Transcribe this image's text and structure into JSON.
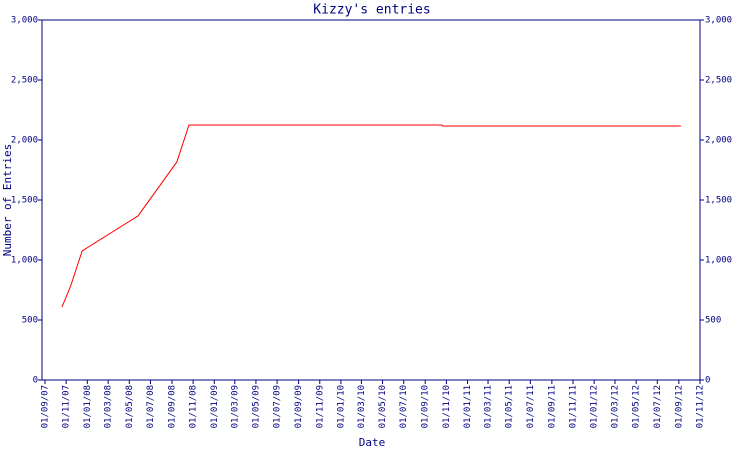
{
  "chart_data": {
    "type": "line",
    "title": "Kizzy's entries",
    "x_label": "Date",
    "y_label": "Number of Entries",
    "x": [
      "2007-10-20",
      "2007-11-15",
      "2007-12-17",
      "2008-05-26",
      "2008-09-15",
      "2008-10-20",
      "2010-10-19",
      "2010-10-21",
      "2012-09-07"
    ],
    "series": [
      {
        "color": "#ff0000",
        "values": [
          608,
          792,
          1075,
          1367,
          1817,
          2125,
          2125,
          2117,
          2117
        ]
      }
    ],
    "xlim": [
      "2007-09-01",
      "2012-11-01"
    ],
    "xticks": [
      {
        "value": "2007-09-01",
        "label": "01/09/07"
      },
      {
        "value": "2007-11-01",
        "label": "01/11/07"
      },
      {
        "value": "2008-01-01",
        "label": "01/01/08"
      },
      {
        "value": "2008-03-01",
        "label": "01/03/08"
      },
      {
        "value": "2008-05-01",
        "label": "01/05/08"
      },
      {
        "value": "2008-07-01",
        "label": "01/07/08"
      },
      {
        "value": "2008-09-01",
        "label": "01/09/08"
      },
      {
        "value": "2008-11-01",
        "label": "01/11/08"
      },
      {
        "value": "2009-01-01",
        "label": "01/01/09"
      },
      {
        "value": "2009-03-01",
        "label": "01/03/09"
      },
      {
        "value": "2009-05-01",
        "label": "01/05/09"
      },
      {
        "value": "2009-07-01",
        "label": "01/07/09"
      },
      {
        "value": "2009-09-01",
        "label": "01/09/09"
      },
      {
        "value": "2009-11-01",
        "label": "01/11/09"
      },
      {
        "value": "2010-01-01",
        "label": "01/01/10"
      },
      {
        "value": "2010-03-01",
        "label": "01/03/10"
      },
      {
        "value": "2010-05-01",
        "label": "01/05/10"
      },
      {
        "value": "2010-07-01",
        "label": "01/07/10"
      },
      {
        "value": "2010-09-01",
        "label": "01/09/10"
      },
      {
        "value": "2010-11-01",
        "label": "01/11/10"
      },
      {
        "value": "2011-01-01",
        "label": "01/01/11"
      },
      {
        "value": "2011-03-01",
        "label": "01/03/11"
      },
      {
        "value": "2011-05-01",
        "label": "01/05/11"
      },
      {
        "value": "2011-07-01",
        "label": "01/07/11"
      },
      {
        "value": "2011-09-01",
        "label": "01/09/11"
      },
      {
        "value": "2011-11-01",
        "label": "01/11/11"
      },
      {
        "value": "2012-01-01",
        "label": "01/01/12"
      },
      {
        "value": "2012-03-01",
        "label": "01/03/12"
      },
      {
        "value": "2012-05-01",
        "label": "01/05/12"
      },
      {
        "value": "2012-07-01",
        "label": "01/07/12"
      },
      {
        "value": "2012-09-01",
        "label": "01/09/12"
      },
      {
        "value": "2012-11-01",
        "label": "01/11/12"
      }
    ],
    "ylim": [
      0,
      3000
    ],
    "yticks": [
      0,
      500,
      {
        "value": 1000,
        "label": "1,000"
      },
      {
        "value": 1500,
        "label": "1,500"
      },
      {
        "value": 2000,
        "label": "2,000"
      },
      {
        "value": 2500,
        "label": "2,500"
      },
      {
        "value": 3000,
        "label": "3,000"
      }
    ]
  }
}
